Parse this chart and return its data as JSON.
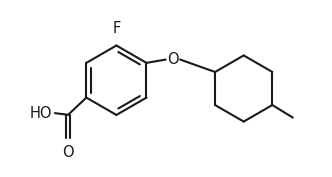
{
  "bg_color": "#ffffff",
  "line_color": "#1a1a1a",
  "line_width": 1.5,
  "fig_width": 3.32,
  "fig_height": 1.77,
  "dpi": 100,
  "xlim": [
    0,
    10
  ],
  "ylim": [
    0,
    5.3
  ]
}
